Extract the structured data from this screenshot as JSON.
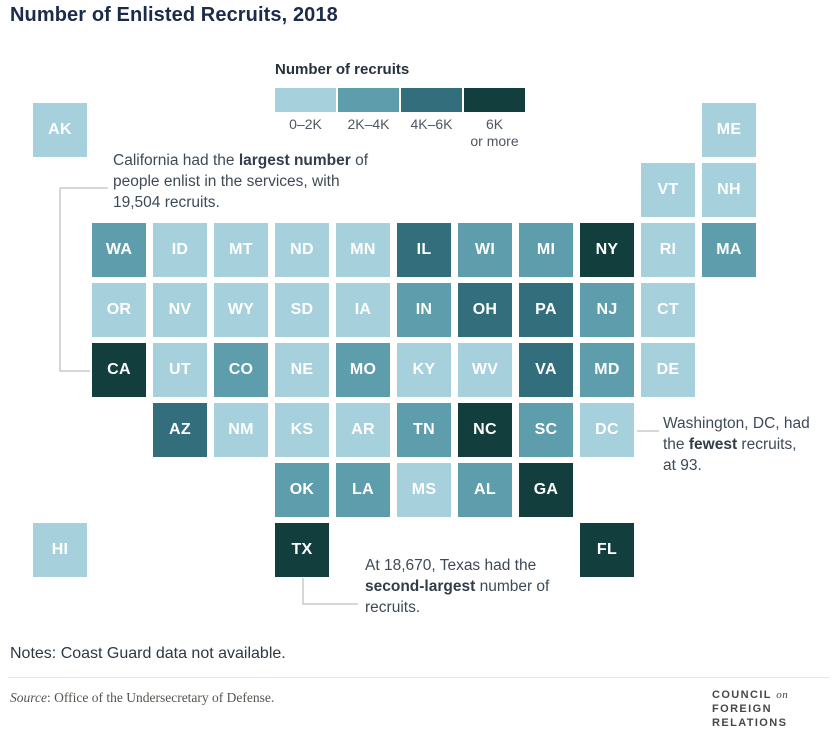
{
  "title": "Number of Enlisted Recruits, 2018",
  "legend": {
    "title": "Number of recruits",
    "buckets": [
      {
        "range": "0–2K",
        "label_lines": [
          "0–2K"
        ],
        "color": "#a6d1dc"
      },
      {
        "range": "2K–4K",
        "label_lines": [
          "2K–4K"
        ],
        "color": "#5e9dac"
      },
      {
        "range": "4K–6K",
        "label_lines": [
          "4K–6K"
        ],
        "color": "#326e7b"
      },
      {
        "range": "6K or more",
        "label_lines": [
          "6K",
          "or more"
        ],
        "color": "#123f3d"
      }
    ]
  },
  "chart_data": {
    "type": "heatmap",
    "subtype": "state-tile-grid-map",
    "title": "Number of Enlisted Recruits, 2018",
    "legend_title": "Number of recruits",
    "categories": [
      "0–2K",
      "2K–4K",
      "4K–6K",
      "6K or more"
    ],
    "palette": [
      "#a6d1dc",
      "#5e9dac",
      "#326e7b",
      "#123f3d"
    ],
    "callouts": [
      {
        "state": "CA",
        "value": 19504,
        "note": "largest number of recruits"
      },
      {
        "state": "TX",
        "value": 18670,
        "note": "second-largest number of recruits"
      },
      {
        "state": "DC",
        "value": 93,
        "note": "fewest recruits"
      }
    ],
    "states": [
      {
        "abbr": "AK",
        "row": 0,
        "col": 0,
        "bucket": "0–2K"
      },
      {
        "abbr": "ME",
        "row": 0,
        "col": 11,
        "bucket": "0–2K"
      },
      {
        "abbr": "VT",
        "row": 1,
        "col": 10,
        "bucket": "0–2K"
      },
      {
        "abbr": "NH",
        "row": 1,
        "col": 11,
        "bucket": "0–2K"
      },
      {
        "abbr": "WA",
        "row": 2,
        "col": 1,
        "bucket": "2K–4K"
      },
      {
        "abbr": "ID",
        "row": 2,
        "col": 2,
        "bucket": "0–2K"
      },
      {
        "abbr": "MT",
        "row": 2,
        "col": 3,
        "bucket": "0–2K"
      },
      {
        "abbr": "ND",
        "row": 2,
        "col": 4,
        "bucket": "0–2K"
      },
      {
        "abbr": "MN",
        "row": 2,
        "col": 5,
        "bucket": "0–2K"
      },
      {
        "abbr": "IL",
        "row": 2,
        "col": 6,
        "bucket": "4K–6K"
      },
      {
        "abbr": "WI",
        "row": 2,
        "col": 7,
        "bucket": "2K–4K"
      },
      {
        "abbr": "MI",
        "row": 2,
        "col": 8,
        "bucket": "2K–4K"
      },
      {
        "abbr": "NY",
        "row": 2,
        "col": 9,
        "bucket": "6K or more"
      },
      {
        "abbr": "RI",
        "row": 2,
        "col": 10,
        "bucket": "0–2K"
      },
      {
        "abbr": "MA",
        "row": 2,
        "col": 11,
        "bucket": "2K–4K"
      },
      {
        "abbr": "OR",
        "row": 3,
        "col": 1,
        "bucket": "0–2K"
      },
      {
        "abbr": "NV",
        "row": 3,
        "col": 2,
        "bucket": "0–2K"
      },
      {
        "abbr": "WY",
        "row": 3,
        "col": 3,
        "bucket": "0–2K"
      },
      {
        "abbr": "SD",
        "row": 3,
        "col": 4,
        "bucket": "0–2K"
      },
      {
        "abbr": "IA",
        "row": 3,
        "col": 5,
        "bucket": "0–2K"
      },
      {
        "abbr": "IN",
        "row": 3,
        "col": 6,
        "bucket": "2K–4K"
      },
      {
        "abbr": "OH",
        "row": 3,
        "col": 7,
        "bucket": "4K–6K"
      },
      {
        "abbr": "PA",
        "row": 3,
        "col": 8,
        "bucket": "4K–6K"
      },
      {
        "abbr": "NJ",
        "row": 3,
        "col": 9,
        "bucket": "2K–4K"
      },
      {
        "abbr": "CT",
        "row": 3,
        "col": 10,
        "bucket": "0–2K"
      },
      {
        "abbr": "CA",
        "row": 4,
        "col": 1,
        "bucket": "6K or more"
      },
      {
        "abbr": "UT",
        "row": 4,
        "col": 2,
        "bucket": "0–2K"
      },
      {
        "abbr": "CO",
        "row": 4,
        "col": 3,
        "bucket": "2K–4K"
      },
      {
        "abbr": "NE",
        "row": 4,
        "col": 4,
        "bucket": "0–2K"
      },
      {
        "abbr": "MO",
        "row": 4,
        "col": 5,
        "bucket": "2K–4K"
      },
      {
        "abbr": "KY",
        "row": 4,
        "col": 6,
        "bucket": "0–2K"
      },
      {
        "abbr": "WV",
        "row": 4,
        "col": 7,
        "bucket": "0–2K"
      },
      {
        "abbr": "VA",
        "row": 4,
        "col": 8,
        "bucket": "4K–6K"
      },
      {
        "abbr": "MD",
        "row": 4,
        "col": 9,
        "bucket": "2K–4K"
      },
      {
        "abbr": "DE",
        "row": 4,
        "col": 10,
        "bucket": "0–2K"
      },
      {
        "abbr": "AZ",
        "row": 5,
        "col": 2,
        "bucket": "4K–6K"
      },
      {
        "abbr": "NM",
        "row": 5,
        "col": 3,
        "bucket": "0–2K"
      },
      {
        "abbr": "KS",
        "row": 5,
        "col": 4,
        "bucket": "0–2K"
      },
      {
        "abbr": "AR",
        "row": 5,
        "col": 5,
        "bucket": "0–2K"
      },
      {
        "abbr": "TN",
        "row": 5,
        "col": 6,
        "bucket": "2K–4K"
      },
      {
        "abbr": "NC",
        "row": 5,
        "col": 7,
        "bucket": "6K or more"
      },
      {
        "abbr": "SC",
        "row": 5,
        "col": 8,
        "bucket": "2K–4K"
      },
      {
        "abbr": "DC",
        "row": 5,
        "col": 9,
        "bucket": "0–2K"
      },
      {
        "abbr": "OK",
        "row": 6,
        "col": 4,
        "bucket": "2K–4K"
      },
      {
        "abbr": "LA",
        "row": 6,
        "col": 5,
        "bucket": "2K–4K"
      },
      {
        "abbr": "MS",
        "row": 6,
        "col": 6,
        "bucket": "0–2K"
      },
      {
        "abbr": "AL",
        "row": 6,
        "col": 7,
        "bucket": "2K–4K"
      },
      {
        "abbr": "GA",
        "row": 6,
        "col": 8,
        "bucket": "6K or more"
      },
      {
        "abbr": "HI",
        "row": 7,
        "col": 0,
        "bucket": "0–2K"
      },
      {
        "abbr": "TX",
        "row": 7,
        "col": 4,
        "bucket": "6K or more"
      },
      {
        "abbr": "FL",
        "row": 7,
        "col": 9,
        "bucket": "6K or more"
      }
    ]
  },
  "annotations": {
    "california": {
      "pre": "California had the ",
      "bold": "largest number",
      "post": " of people enlist in the services, with 19,504 recruits."
    },
    "dc": {
      "pre": "Washington, DC, had the ",
      "bold": "fewest",
      "post": " recruits, at 93."
    },
    "texas": {
      "pre": "At 18,670, Texas had the ",
      "bold": "second-largest",
      "post": " number of recruits."
    }
  },
  "notes": "Notes: Coast Guard data not available.",
  "source": {
    "label": "Source",
    "text": ": Office of the Undersecretary of Defense."
  },
  "logo": {
    "line1": "COUNCIL",
    "on": "on",
    "line2": "FOREIGN",
    "line3": "RELATIONS"
  }
}
